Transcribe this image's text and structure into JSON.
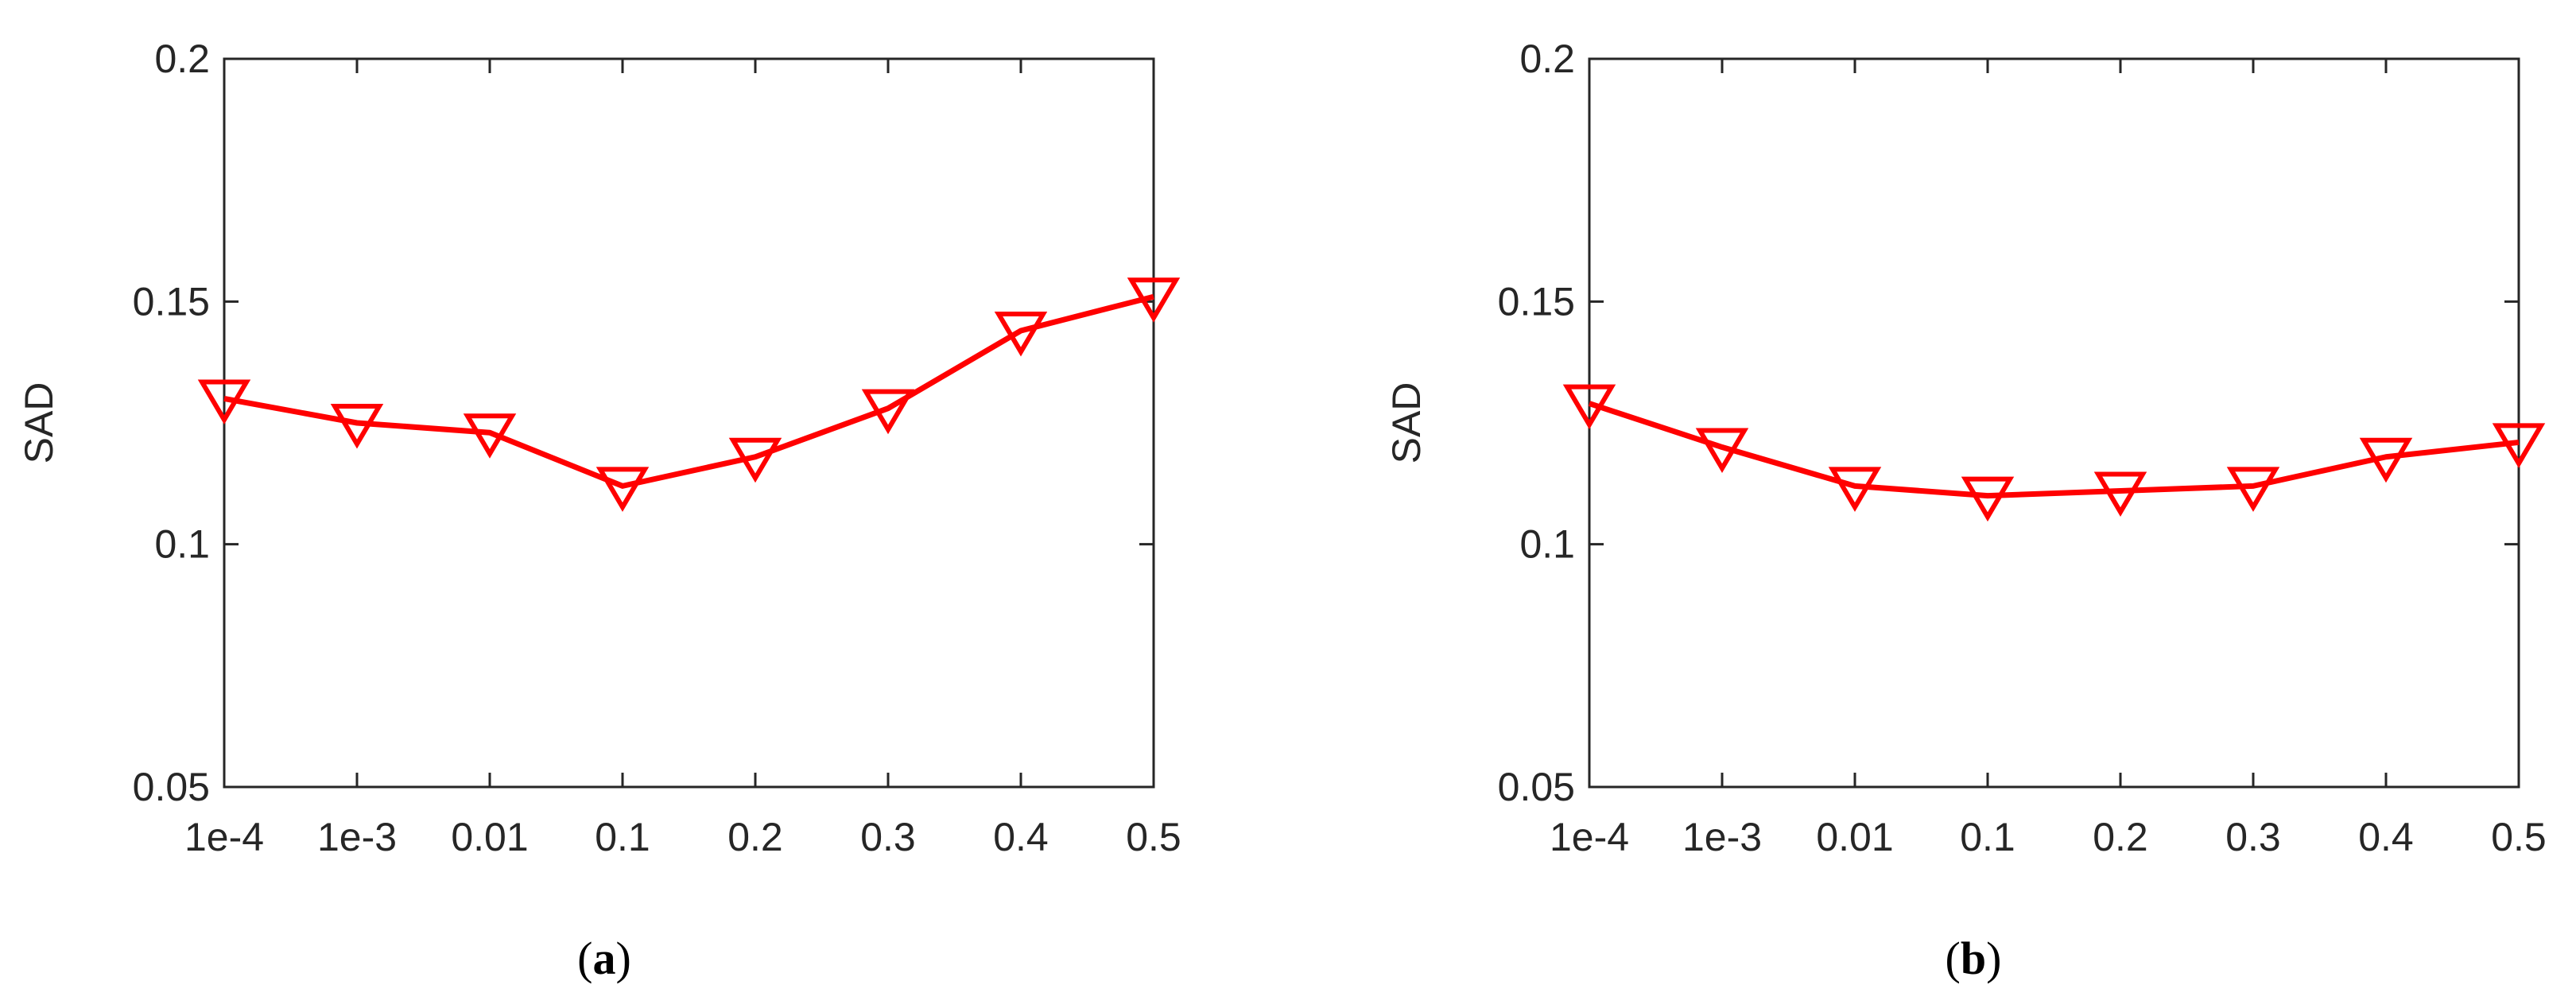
{
  "chart_data": [
    {
      "type": "line",
      "caption_letter": "a",
      "categories": [
        "1e-4",
        "1e-3",
        "0.01",
        "0.1",
        "0.2",
        "0.3",
        "0.4",
        "0.5"
      ],
      "series": [
        {
          "values": [
            0.13,
            0.125,
            0.123,
            0.112,
            0.118,
            0.128,
            0.144,
            0.151
          ],
          "color": "#ff0000",
          "marker": "triangle-down"
        }
      ],
      "xlabel": "",
      "ylabel": "SAD",
      "ylim": [
        0.05,
        0.2
      ],
      "yticks": [
        "0.05",
        "0.1",
        "0.15",
        "0.2"
      ],
      "grid": false
    },
    {
      "type": "line",
      "caption_letter": "b",
      "categories": [
        "1e-4",
        "1e-3",
        "0.01",
        "0.1",
        "0.2",
        "0.3",
        "0.4",
        "0.5"
      ],
      "series": [
        {
          "values": [
            0.129,
            0.12,
            0.112,
            0.11,
            0.111,
            0.112,
            0.118,
            0.121
          ],
          "color": "#ff0000",
          "marker": "triangle-down"
        }
      ],
      "xlabel": "",
      "ylabel": "SAD",
      "ylim": [
        0.05,
        0.2
      ],
      "yticks": [
        "0.05",
        "0.1",
        "0.15",
        "0.2"
      ],
      "grid": false
    }
  ]
}
